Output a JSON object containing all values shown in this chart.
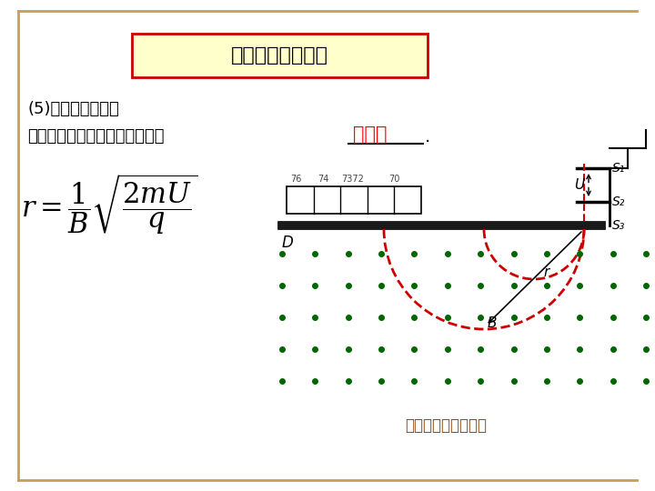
{
  "bg_color": "#FFFFFF",
  "border_color": "#C8A050",
  "title_text": "研究质谱仪原理：",
  "title_bg": "#FFFFCC",
  "title_border": "#CC0000",
  "text1": "(5)质谱仪的应用：",
  "text2": "可以测定带电粒子的质量和分析",
  "text2_red": "同位素",
  "caption": "质谱仪的原理示意图",
  "dot_color": "#006600",
  "arc_color": "#CC0000",
  "label_D": "D",
  "label_r": "r",
  "label_B": "B",
  "label_S1": "S₁",
  "label_S2": "S₂",
  "label_S3": "S₃",
  "label_U": "U"
}
